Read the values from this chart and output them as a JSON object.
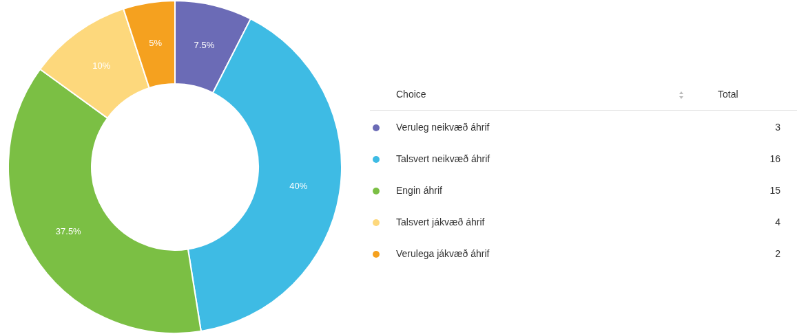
{
  "chart_data": {
    "type": "donut",
    "legend_title": "Choice",
    "annotations": [
      "Total"
    ],
    "categories": [
      "Veruleg neikvæð áhrif",
      "Talsvert neikvæð áhrif",
      "Engin áhrif",
      "Talsvert jákvæð áhrif",
      "Verulega jákvæð áhrif"
    ],
    "values": [
      7.5,
      40,
      37.5,
      10,
      5
    ],
    "totals": [
      "3",
      "16",
      "15",
      "4",
      "2"
    ],
    "value_labels": [
      "7.5%",
      "40%",
      "37.5%",
      "10%",
      "5%"
    ],
    "colors": [
      "#6b6bb6",
      "#3ebbe4",
      "#7bbf44",
      "#fdd87c",
      "#f5a11f"
    ],
    "legend": "right"
  }
}
